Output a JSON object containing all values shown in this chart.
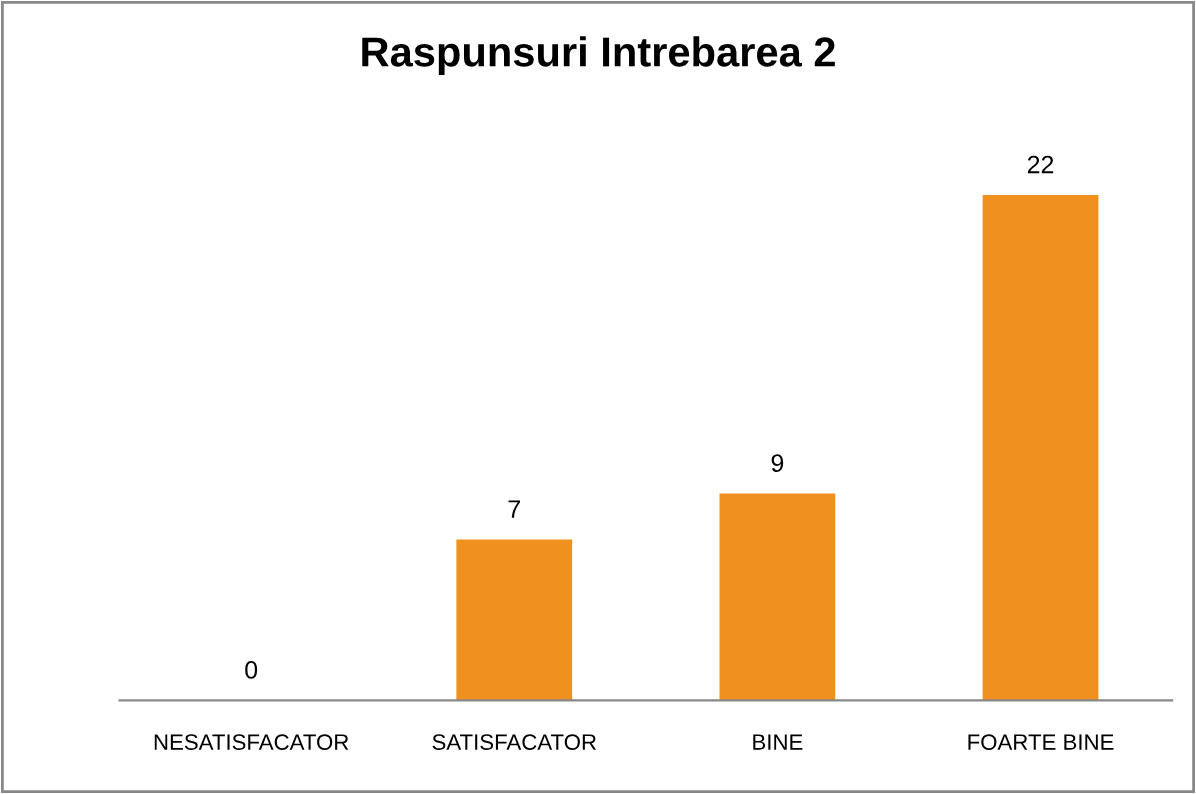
{
  "chart_data": {
    "type": "bar",
    "title": "Raspunsuri Intrebarea 2",
    "categories": [
      "NESATISFACATOR",
      "SATISFACATOR",
      "BINE",
      "FOARTE BINE"
    ],
    "values": [
      0,
      7,
      9,
      22
    ],
    "color": "#f0901e",
    "data_labels": true,
    "grid": false,
    "legend": false
  }
}
